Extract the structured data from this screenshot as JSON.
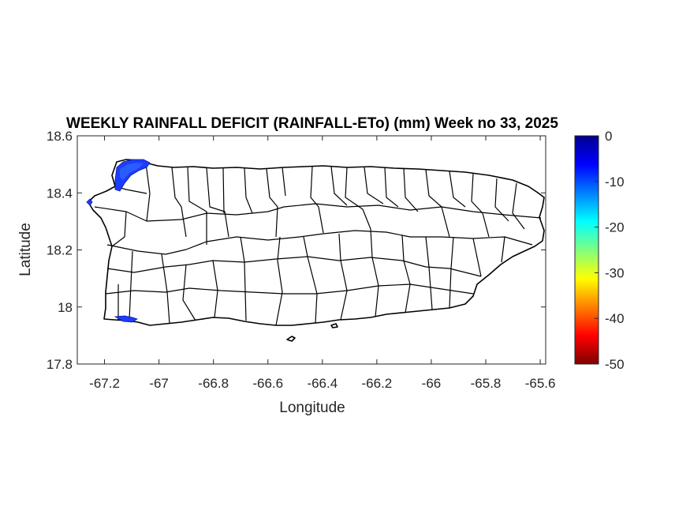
{
  "chart_data": {
    "type": "heatmap",
    "title": "WEEKLY RAINFALL DEFICIT (RAINFALL-ETo) (mm) Week no 33, 2025",
    "xlabel": "Longitude",
    "ylabel": "Latitude",
    "xlim": [
      -67.3,
      -65.58
    ],
    "ylim": [
      17.8,
      18.6
    ],
    "x_ticks": [
      "-67.2",
      "-67",
      "-66.8",
      "-66.6",
      "-66.4",
      "-66.2",
      "-66",
      "-65.8",
      "-65.6"
    ],
    "y_ticks": [
      "18.6",
      "18.4",
      "18.2",
      "18",
      "17.8"
    ],
    "colorbar": {
      "range": [
        -50,
        0
      ],
      "ticks": [
        "0",
        "-10",
        "-20",
        "-30",
        "-40",
        "-50"
      ],
      "colormap": "jet"
    },
    "deficit_regions": [
      {
        "area": "northwest coast",
        "value_range": [
          -8,
          -3
        ]
      },
      {
        "area": "west coast point",
        "value_range": [
          -8,
          -5
        ]
      },
      {
        "area": "southwest coast",
        "value_range": [
          -8,
          -5
        ]
      }
    ],
    "colors": {
      "low": "#00008f",
      "high": "#800000"
    }
  }
}
